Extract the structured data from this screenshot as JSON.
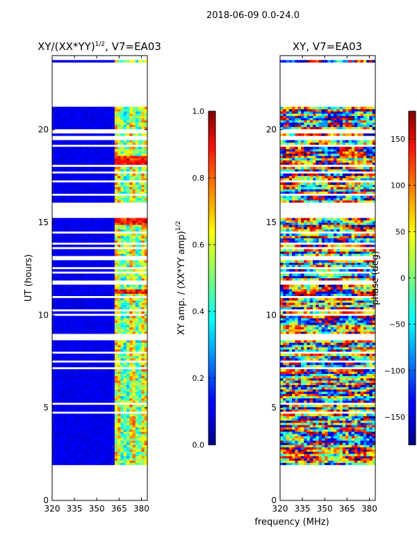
{
  "suptitle": "2018-06-09 0.0-24.0",
  "xlabel_shared": "frequency (MHz)",
  "chart_data": [
    {
      "type": "heatmap",
      "title": "XY/(XX*YY)",
      "title_exp": "1/2",
      "title_suffix": ", V7=EA03",
      "xlabel": "",
      "ylabel": "UT (hours)",
      "xlim": [
        320,
        384
      ],
      "ylim": [
        0,
        24
      ],
      "xticks": [
        320,
        335,
        350,
        365,
        380
      ],
      "yticks": [
        0,
        5,
        10,
        15,
        20
      ],
      "data_time_range": [
        1.8,
        24
      ],
      "colormap": "jet",
      "colorbar": {
        "label": "XY amp. / (XX*YY amp)",
        "label_exp": "1/2",
        "vmin": 0.0,
        "vmax": 1.0,
        "ticks": [
          "0.0",
          "0.2",
          "0.4",
          "0.6",
          "0.8",
          "1.0"
        ]
      }
    },
    {
      "type": "heatmap",
      "title": "XY, V7=EA03",
      "xlabel": "frequency (MHz)",
      "ylabel": "",
      "xlim": [
        320,
        384
      ],
      "ylim": [
        0,
        24
      ],
      "xticks": [
        320,
        335,
        350,
        365,
        380
      ],
      "yticks": [
        0,
        5,
        10,
        15,
        20
      ],
      "data_time_range": [
        1.8,
        24
      ],
      "colormap": "jet",
      "colorbar": {
        "label": "phase (deg)",
        "vmin": -180,
        "vmax": 180,
        "ticks": [
          "−150",
          "−100",
          "−50",
          "0",
          "50",
          "100",
          "150"
        ]
      }
    }
  ],
  "colors": {
    "frame": "#000000",
    "background": "#ffffff"
  }
}
